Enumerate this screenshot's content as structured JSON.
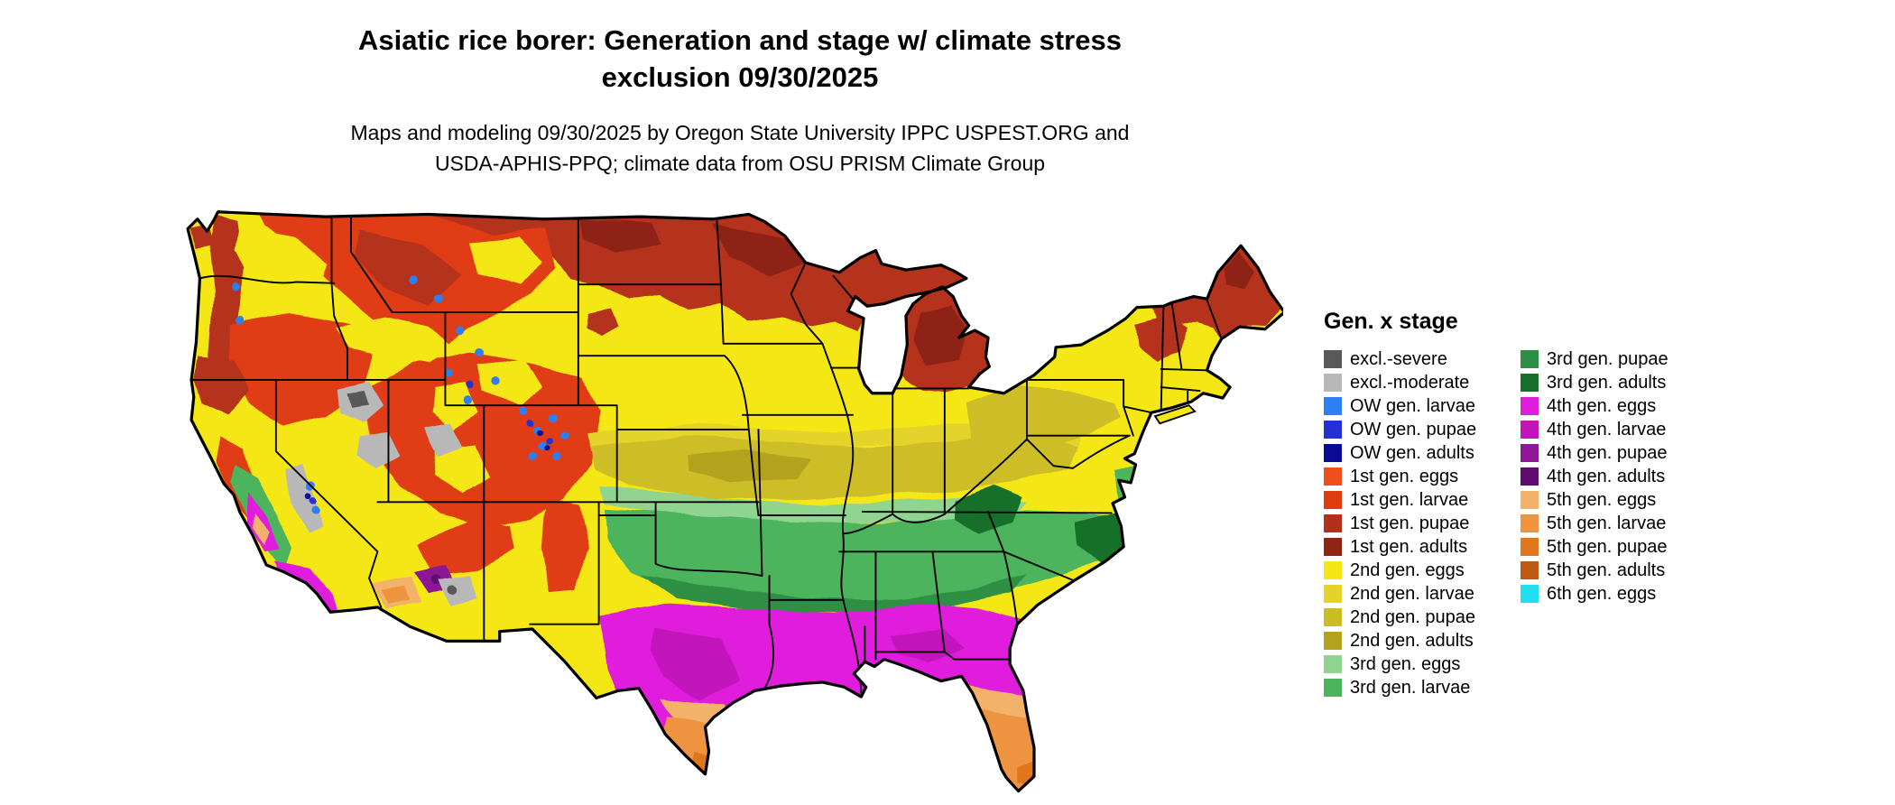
{
  "header": {
    "title_line1": "Asiatic rice borer: Generation and stage w/ climate stress",
    "title_line2": "exclusion 09/30/2025",
    "subtitle_line1": "Maps and modeling 09/30/2025 by Oregon State University IPPC USPEST.ORG and",
    "subtitle_line2": "USDA-APHIS-PPQ; climate data from OSU PRISM Climate Group"
  },
  "map": {
    "region": "Continental United States",
    "date_shown": "09/30/2025"
  },
  "legend": {
    "title": "Gen. x stage",
    "palette": {
      "excl_severe": "#595959",
      "excl_moderate": "#b8b8b8",
      "ow_larvae": "#2e7ef5",
      "ow_pupae": "#2430d6",
      "ow_adults": "#0a0a96",
      "g1_eggs": "#f04f1c",
      "g1_larvae": "#e03c12",
      "g1_pupae": "#b5301a",
      "g1_adults": "#8f2413",
      "g2_eggs": "#f5e616",
      "g2_larvae": "#e3d32a",
      "g2_pupae": "#cdbd25",
      "g2_adults": "#b3a21c",
      "g3_eggs": "#90d58f",
      "g3_larvae": "#4bb45c",
      "g3_pupae": "#2e8f44",
      "g3_adults": "#17702b",
      "g4_eggs": "#e01ddd",
      "g4_larvae": "#c215bc",
      "g4_pupae": "#8d1795",
      "g4_adults": "#5f0c6e",
      "g5_eggs": "#f3b269",
      "g5_larvae": "#ee9440",
      "g5_pupae": "#e0761e",
      "g5_adults": "#bf5a14",
      "g6_eggs": "#1fe0f0"
    },
    "columns": [
      {
        "items": [
          {
            "label": "excl.-severe",
            "key": "excl_severe"
          },
          {
            "label": "excl.-moderate",
            "key": "excl_moderate"
          },
          {
            "label": "OW gen. larvae",
            "key": "ow_larvae"
          },
          {
            "label": "OW gen. pupae",
            "key": "ow_pupae"
          },
          {
            "label": "OW gen. adults",
            "key": "ow_adults"
          },
          {
            "label": "1st gen. eggs",
            "key": "g1_eggs"
          },
          {
            "label": "1st gen. larvae",
            "key": "g1_larvae"
          },
          {
            "label": "1st gen. pupae",
            "key": "g1_pupae"
          },
          {
            "label": "1st gen. adults",
            "key": "g1_adults"
          },
          {
            "label": "2nd gen. eggs",
            "key": "g2_eggs"
          },
          {
            "label": "2nd gen. larvae",
            "key": "g2_larvae"
          },
          {
            "label": "2nd gen. pupae",
            "key": "g2_pupae"
          },
          {
            "label": "2nd gen. adults",
            "key": "g2_adults"
          },
          {
            "label": "3rd gen. eggs",
            "key": "g3_eggs"
          },
          {
            "label": "3rd gen. larvae",
            "key": "g3_larvae"
          }
        ]
      },
      {
        "items": [
          {
            "label": "3rd gen. pupae",
            "key": "g3_pupae"
          },
          {
            "label": "3rd gen. adults",
            "key": "g3_adults"
          },
          {
            "label": "4th gen. eggs",
            "key": "g4_eggs"
          },
          {
            "label": "4th gen. larvae",
            "key": "g4_larvae"
          },
          {
            "label": "4th gen. pupae",
            "key": "g4_pupae"
          },
          {
            "label": "4th gen. adults",
            "key": "g4_adults"
          },
          {
            "label": "5th gen. eggs",
            "key": "g5_eggs"
          },
          {
            "label": "5th gen. larvae",
            "key": "g5_larvae"
          },
          {
            "label": "5th gen. pupae",
            "key": "g5_pupae"
          },
          {
            "label": "5th gen. adults",
            "key": "g5_adults"
          },
          {
            "label": "6th gen. eggs",
            "key": "g6_eggs"
          }
        ]
      }
    ]
  }
}
